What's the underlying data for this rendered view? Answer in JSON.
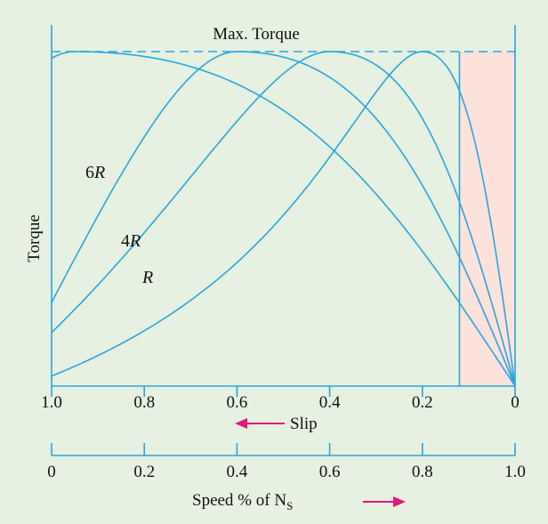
{
  "chart_data": {
    "type": "line",
    "title": "",
    "annotation_max_torque": "Max. Torque",
    "ylabel": "Torque",
    "slip_axis": {
      "label": "Slip",
      "ticks": [
        1.0,
        0.8,
        0.6,
        0.4,
        0.2,
        0
      ],
      "tick_labels": [
        "1.0",
        "0.8",
        "0.6",
        "0.4",
        "0.2",
        "0"
      ],
      "range": [
        1.0,
        0
      ]
    },
    "speed_axis": {
      "label_main": "Speed % of N",
      "label_sub": "S",
      "ticks": [
        0,
        0.2,
        0.4,
        0.6,
        0.8,
        1.0
      ],
      "tick_labels": [
        "0",
        "0.2",
        "0.4",
        "0.6",
        "0.8",
        "1.0"
      ],
      "range": [
        0,
        1.0
      ]
    },
    "torque_range": [
      0,
      1
    ],
    "max_torque": 1.0,
    "shaded_region": {
      "slip_from": 0.12,
      "slip_to": 0,
      "color": "#fde2dc"
    },
    "curve_color": "#2aa5dc",
    "arrow_color": "#e0197d",
    "series": [
      {
        "name": "",
        "slip_at_max_torque": 0.2,
        "start_torque": 0.03
      },
      {
        "name": "",
        "slip_at_max_torque": 0.4,
        "start_torque": 0.16
      },
      {
        "name": "",
        "slip_at_max_torque": 0.6,
        "start_torque": 0.25
      },
      {
        "name": "",
        "slip_at_max_torque": 0.95,
        "start_torque": 0.98
      }
    ],
    "curve_labels": [
      {
        "text": "R",
        "series_index": 0,
        "italic": true
      },
      {
        "text": "4",
        "text_italic": "R",
        "series_index": 1
      },
      {
        "text": "6",
        "text_italic": "R",
        "series_index": 2
      }
    ]
  }
}
